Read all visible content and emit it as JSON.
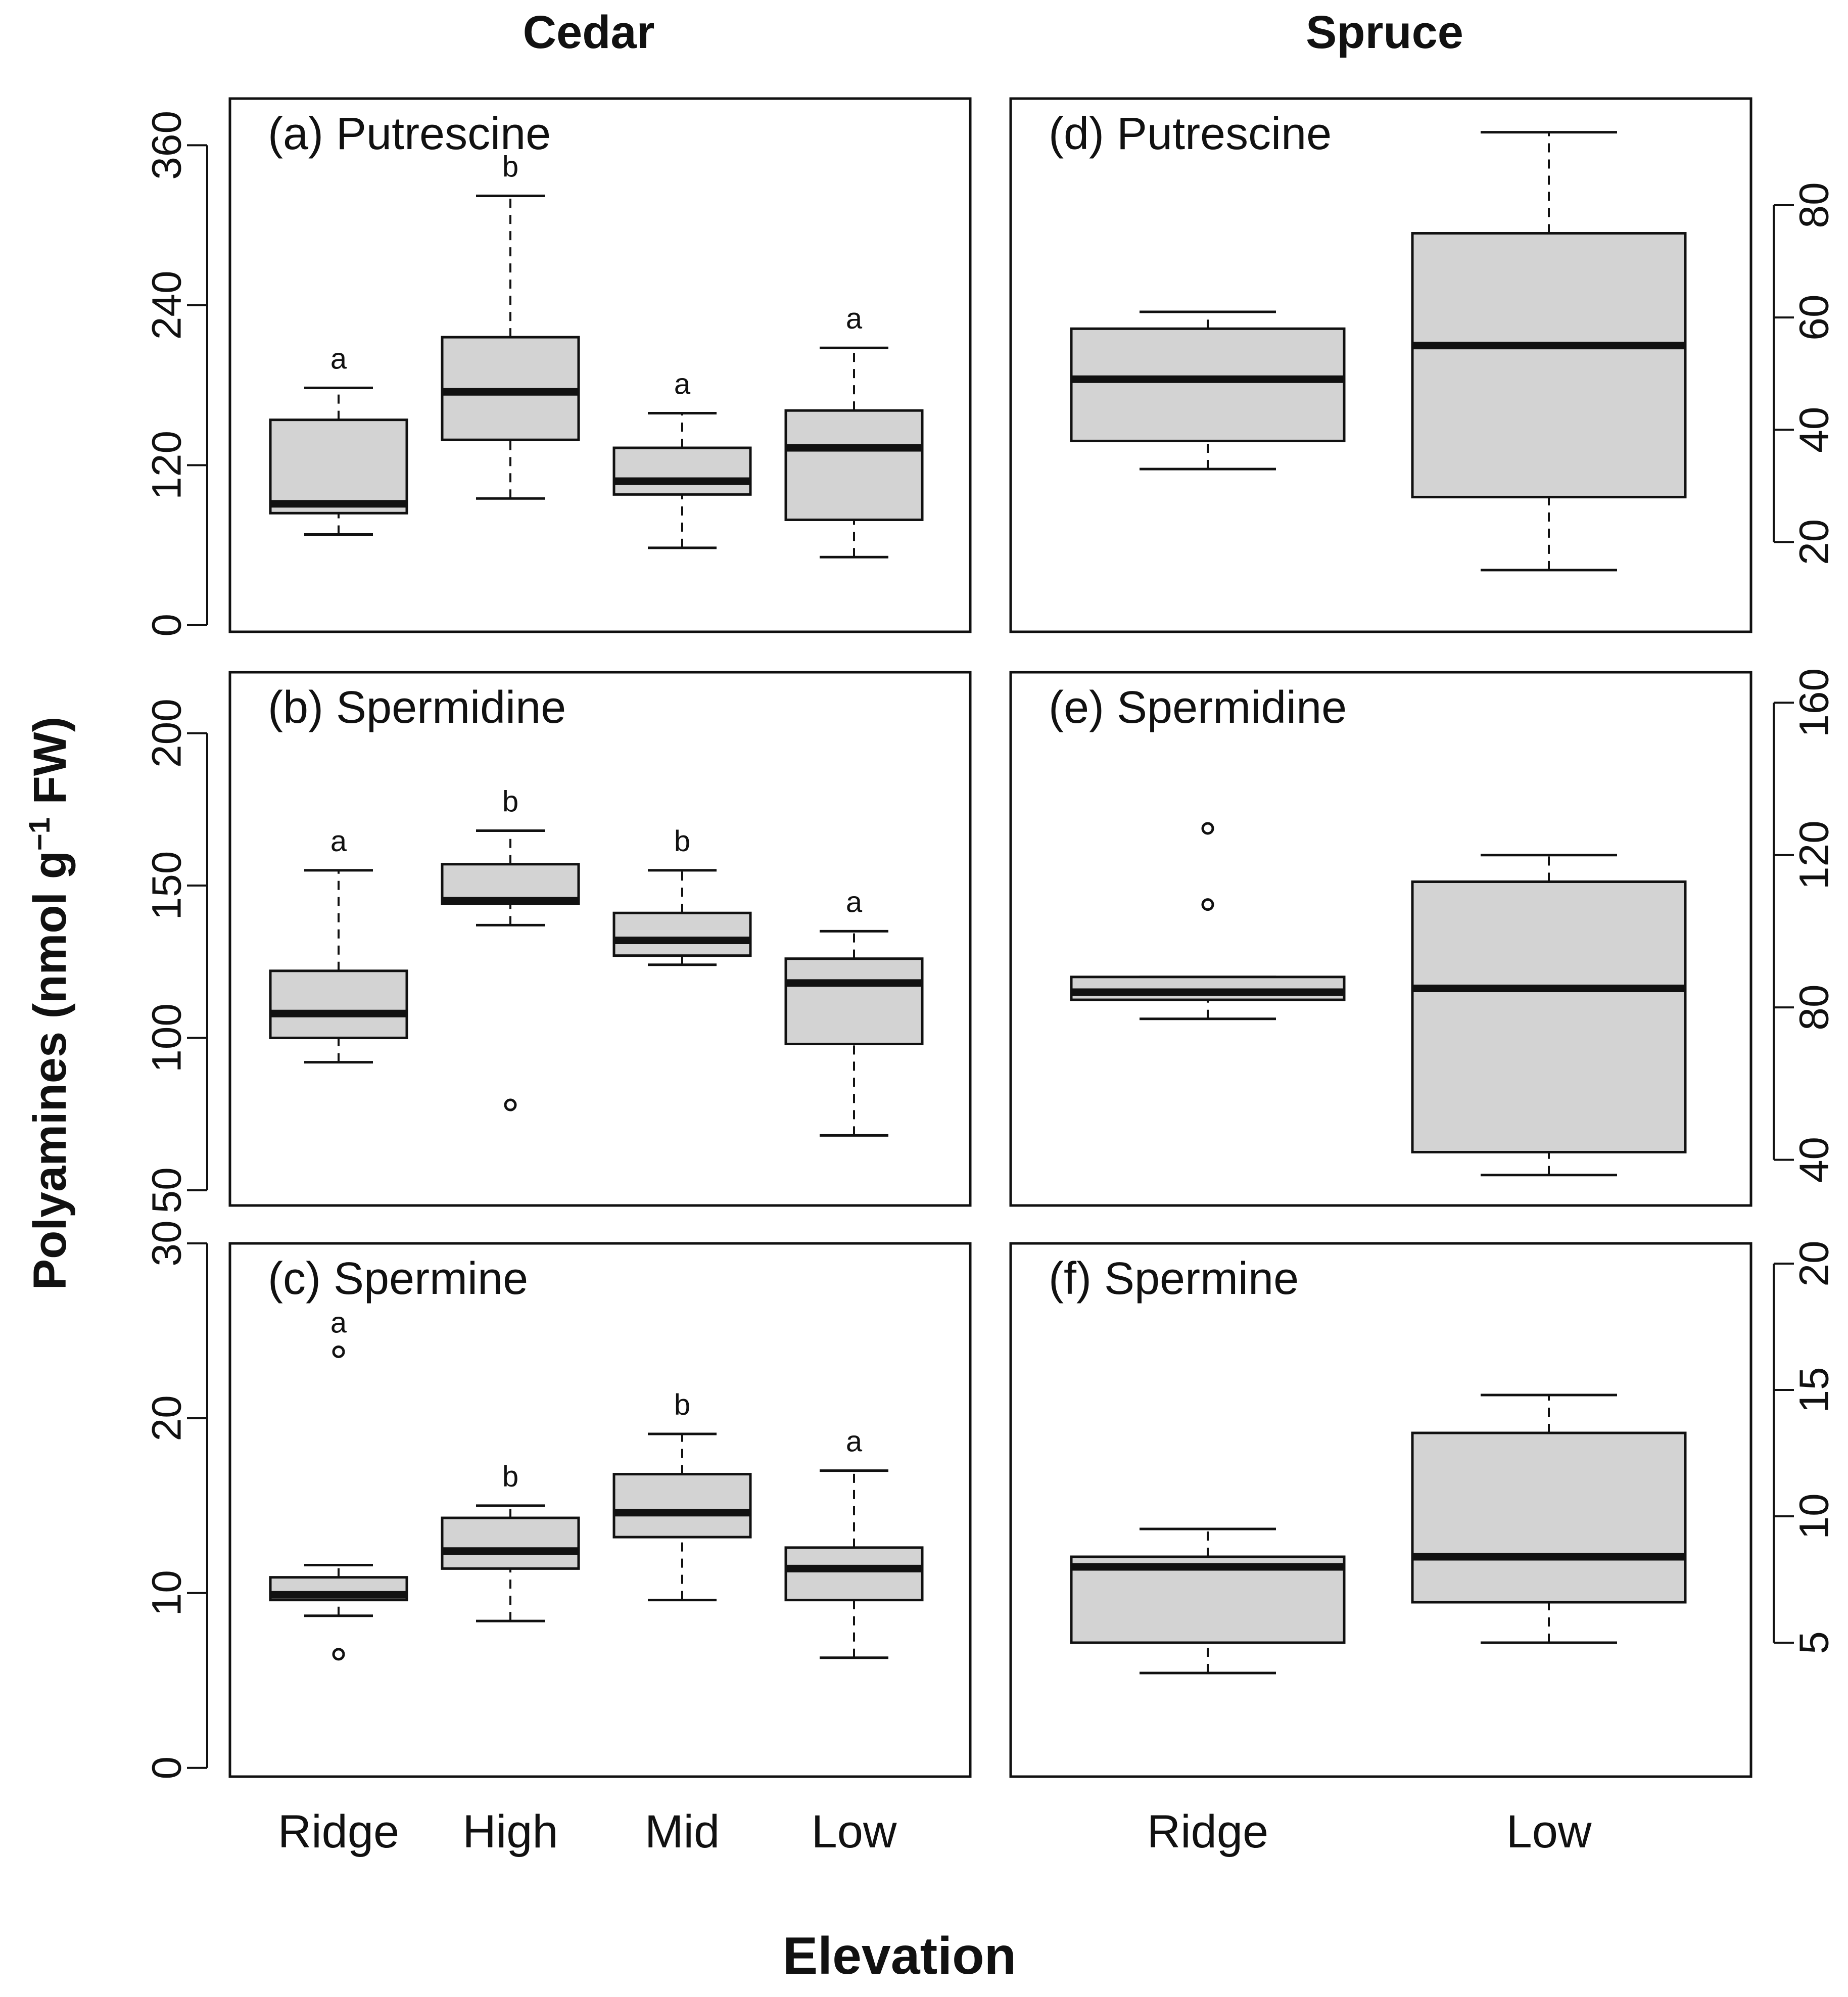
{
  "figure": {
    "col_titles": [
      "Cedar",
      "Spruce"
    ],
    "xlabel": "Elevation",
    "ylabel_main": "Polyamines (nmol g",
    "ylabel_sup": "−1",
    "ylabel_tail": " FW)"
  },
  "chart_data": [
    {
      "type": "boxplot",
      "id": "a",
      "title": "(a) Putrescine",
      "categories": [
        "Ridge",
        "High",
        "Mid",
        "Low"
      ],
      "ylim": [
        -5,
        395
      ],
      "yticks": [
        0,
        120,
        240,
        360
      ],
      "axis_side": "left",
      "boxes": [
        {
          "min": 68,
          "q1": 84,
          "median": 91,
          "q3": 154,
          "max": 178,
          "letter": "a",
          "outliers": []
        },
        {
          "min": 95,
          "q1": 139,
          "median": 175,
          "q3": 216,
          "max": 322,
          "letter": "b",
          "outliers": []
        },
        {
          "min": 58,
          "q1": 98,
          "median": 108,
          "q3": 133,
          "max": 159,
          "letter": "a",
          "outliers": []
        },
        {
          "min": 51,
          "q1": 79,
          "median": 133,
          "q3": 161,
          "max": 208,
          "letter": "a",
          "outliers": []
        }
      ]
    },
    {
      "type": "boxplot",
      "id": "b",
      "title": "(b) Spermidine",
      "categories": [
        "Ridge",
        "High",
        "Mid",
        "Low"
      ],
      "ylim": [
        45,
        220
      ],
      "yticks": [
        50,
        100,
        150,
        200
      ],
      "axis_side": "left",
      "boxes": [
        {
          "min": 92,
          "q1": 100,
          "median": 108,
          "q3": 122,
          "max": 155,
          "letter": "a",
          "outliers": []
        },
        {
          "min": 137,
          "q1": 144,
          "median": 145,
          "q3": 157,
          "max": 168,
          "letter": "b",
          "outliers": [
            78
          ]
        },
        {
          "min": 124,
          "q1": 127,
          "median": 132,
          "q3": 141,
          "max": 155,
          "letter": "b",
          "outliers": []
        },
        {
          "min": 68,
          "q1": 98,
          "median": 118,
          "q3": 126,
          "max": 135,
          "letter": "a",
          "outliers": []
        }
      ]
    },
    {
      "type": "boxplot",
      "id": "c",
      "title": "(c) Spermine",
      "categories": [
        "Ridge",
        "High",
        "Mid",
        "Low"
      ],
      "ylim": [
        -0.5,
        30
      ],
      "yticks": [
        0,
        10,
        20,
        30
      ],
      "axis_side": "left",
      "boxes": [
        {
          "min": 8.7,
          "q1": 9.6,
          "median": 9.9,
          "q3": 10.9,
          "max": 11.6,
          "letter": "a",
          "outliers": [
            23.8,
            6.5
          ]
        },
        {
          "min": 8.4,
          "q1": 11.4,
          "median": 12.4,
          "q3": 14.3,
          "max": 15.0,
          "letter": "b",
          "outliers": []
        },
        {
          "min": 9.6,
          "q1": 13.2,
          "median": 14.6,
          "q3": 16.8,
          "max": 19.1,
          "letter": "b",
          "outliers": []
        },
        {
          "min": 6.3,
          "q1": 9.6,
          "median": 11.4,
          "q3": 12.6,
          "max": 17.0,
          "letter": "a",
          "outliers": []
        }
      ]
    },
    {
      "type": "boxplot",
      "id": "d",
      "title": "(d) Putrescine",
      "categories": [
        "Ridge",
        "Low"
      ],
      "ylim": [
        4,
        99
      ],
      "yticks": [
        20,
        40,
        60,
        80
      ],
      "axis_side": "right",
      "boxes": [
        {
          "min": 33,
          "q1": 38,
          "median": 49,
          "q3": 58,
          "max": 61,
          "letter": "",
          "outliers": []
        },
        {
          "min": 15,
          "q1": 28,
          "median": 55,
          "q3": 75,
          "max": 93,
          "letter": "",
          "outliers": []
        }
      ]
    },
    {
      "type": "boxplot",
      "id": "e",
      "title": "(e) Spermidine",
      "categories": [
        "Ridge",
        "Low"
      ],
      "ylim": [
        28,
        168
      ],
      "yticks": [
        40,
        80,
        120,
        160
      ],
      "axis_side": "right",
      "boxes": [
        {
          "min": 77,
          "q1": 82,
          "median": 84,
          "q3": 88,
          "max": 88,
          "letter": "",
          "outliers": [
            127,
            107
          ]
        },
        {
          "min": 36,
          "q1": 42,
          "median": 85,
          "q3": 113,
          "max": 120,
          "letter": "",
          "outliers": []
        }
      ]
    },
    {
      "type": "boxplot",
      "id": "f",
      "title": "(f) Spermine",
      "categories": [
        "Ridge",
        "Low"
      ],
      "ylim": [
        -0.3,
        20.8
      ],
      "yticks": [
        5,
        10,
        15,
        20
      ],
      "axis_side": "right",
      "boxes": [
        {
          "min": 3.8,
          "q1": 5.0,
          "median": 8.0,
          "q3": 8.4,
          "max": 9.5,
          "letter": "",
          "outliers": []
        },
        {
          "min": 5.0,
          "q1": 6.6,
          "median": 8.4,
          "q3": 13.3,
          "max": 14.8,
          "letter": "",
          "outliers": []
        }
      ]
    }
  ]
}
